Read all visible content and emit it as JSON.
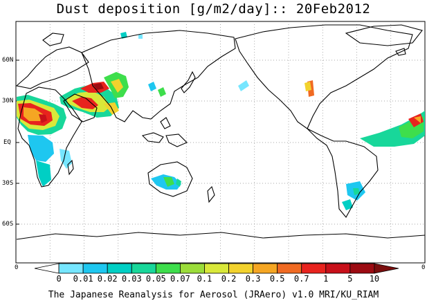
{
  "title": "Dust deposition [g/m2/day]:: 20Feb2012",
  "latitude_labels": [
    "60N",
    "30N",
    "EQ",
    "30S",
    "60S"
  ],
  "edge_labels": {
    "left": "0",
    "right": "0"
  },
  "colorbar": {
    "labels": [
      "0",
      "0.01",
      "0.02",
      "0.03",
      "0.05",
      "0.07",
      "0.1",
      "0.2",
      "0.3",
      "0.5",
      "0.7",
      "1",
      "5",
      "10"
    ],
    "colors": [
      "#ffffff",
      "#76e6ff",
      "#1ec7f0",
      "#00cfc4",
      "#18d79a",
      "#3ede4c",
      "#9bdd3a",
      "#d9e83a",
      "#f2d22d",
      "#f5a623",
      "#f06a22",
      "#e8231e",
      "#c8101a",
      "#9c0b12",
      "#7a0d0d"
    ]
  },
  "credit": "The Japanese Reanalysis for Aerosol (JRAero) v1.0 MRI/KU_RIAM"
}
